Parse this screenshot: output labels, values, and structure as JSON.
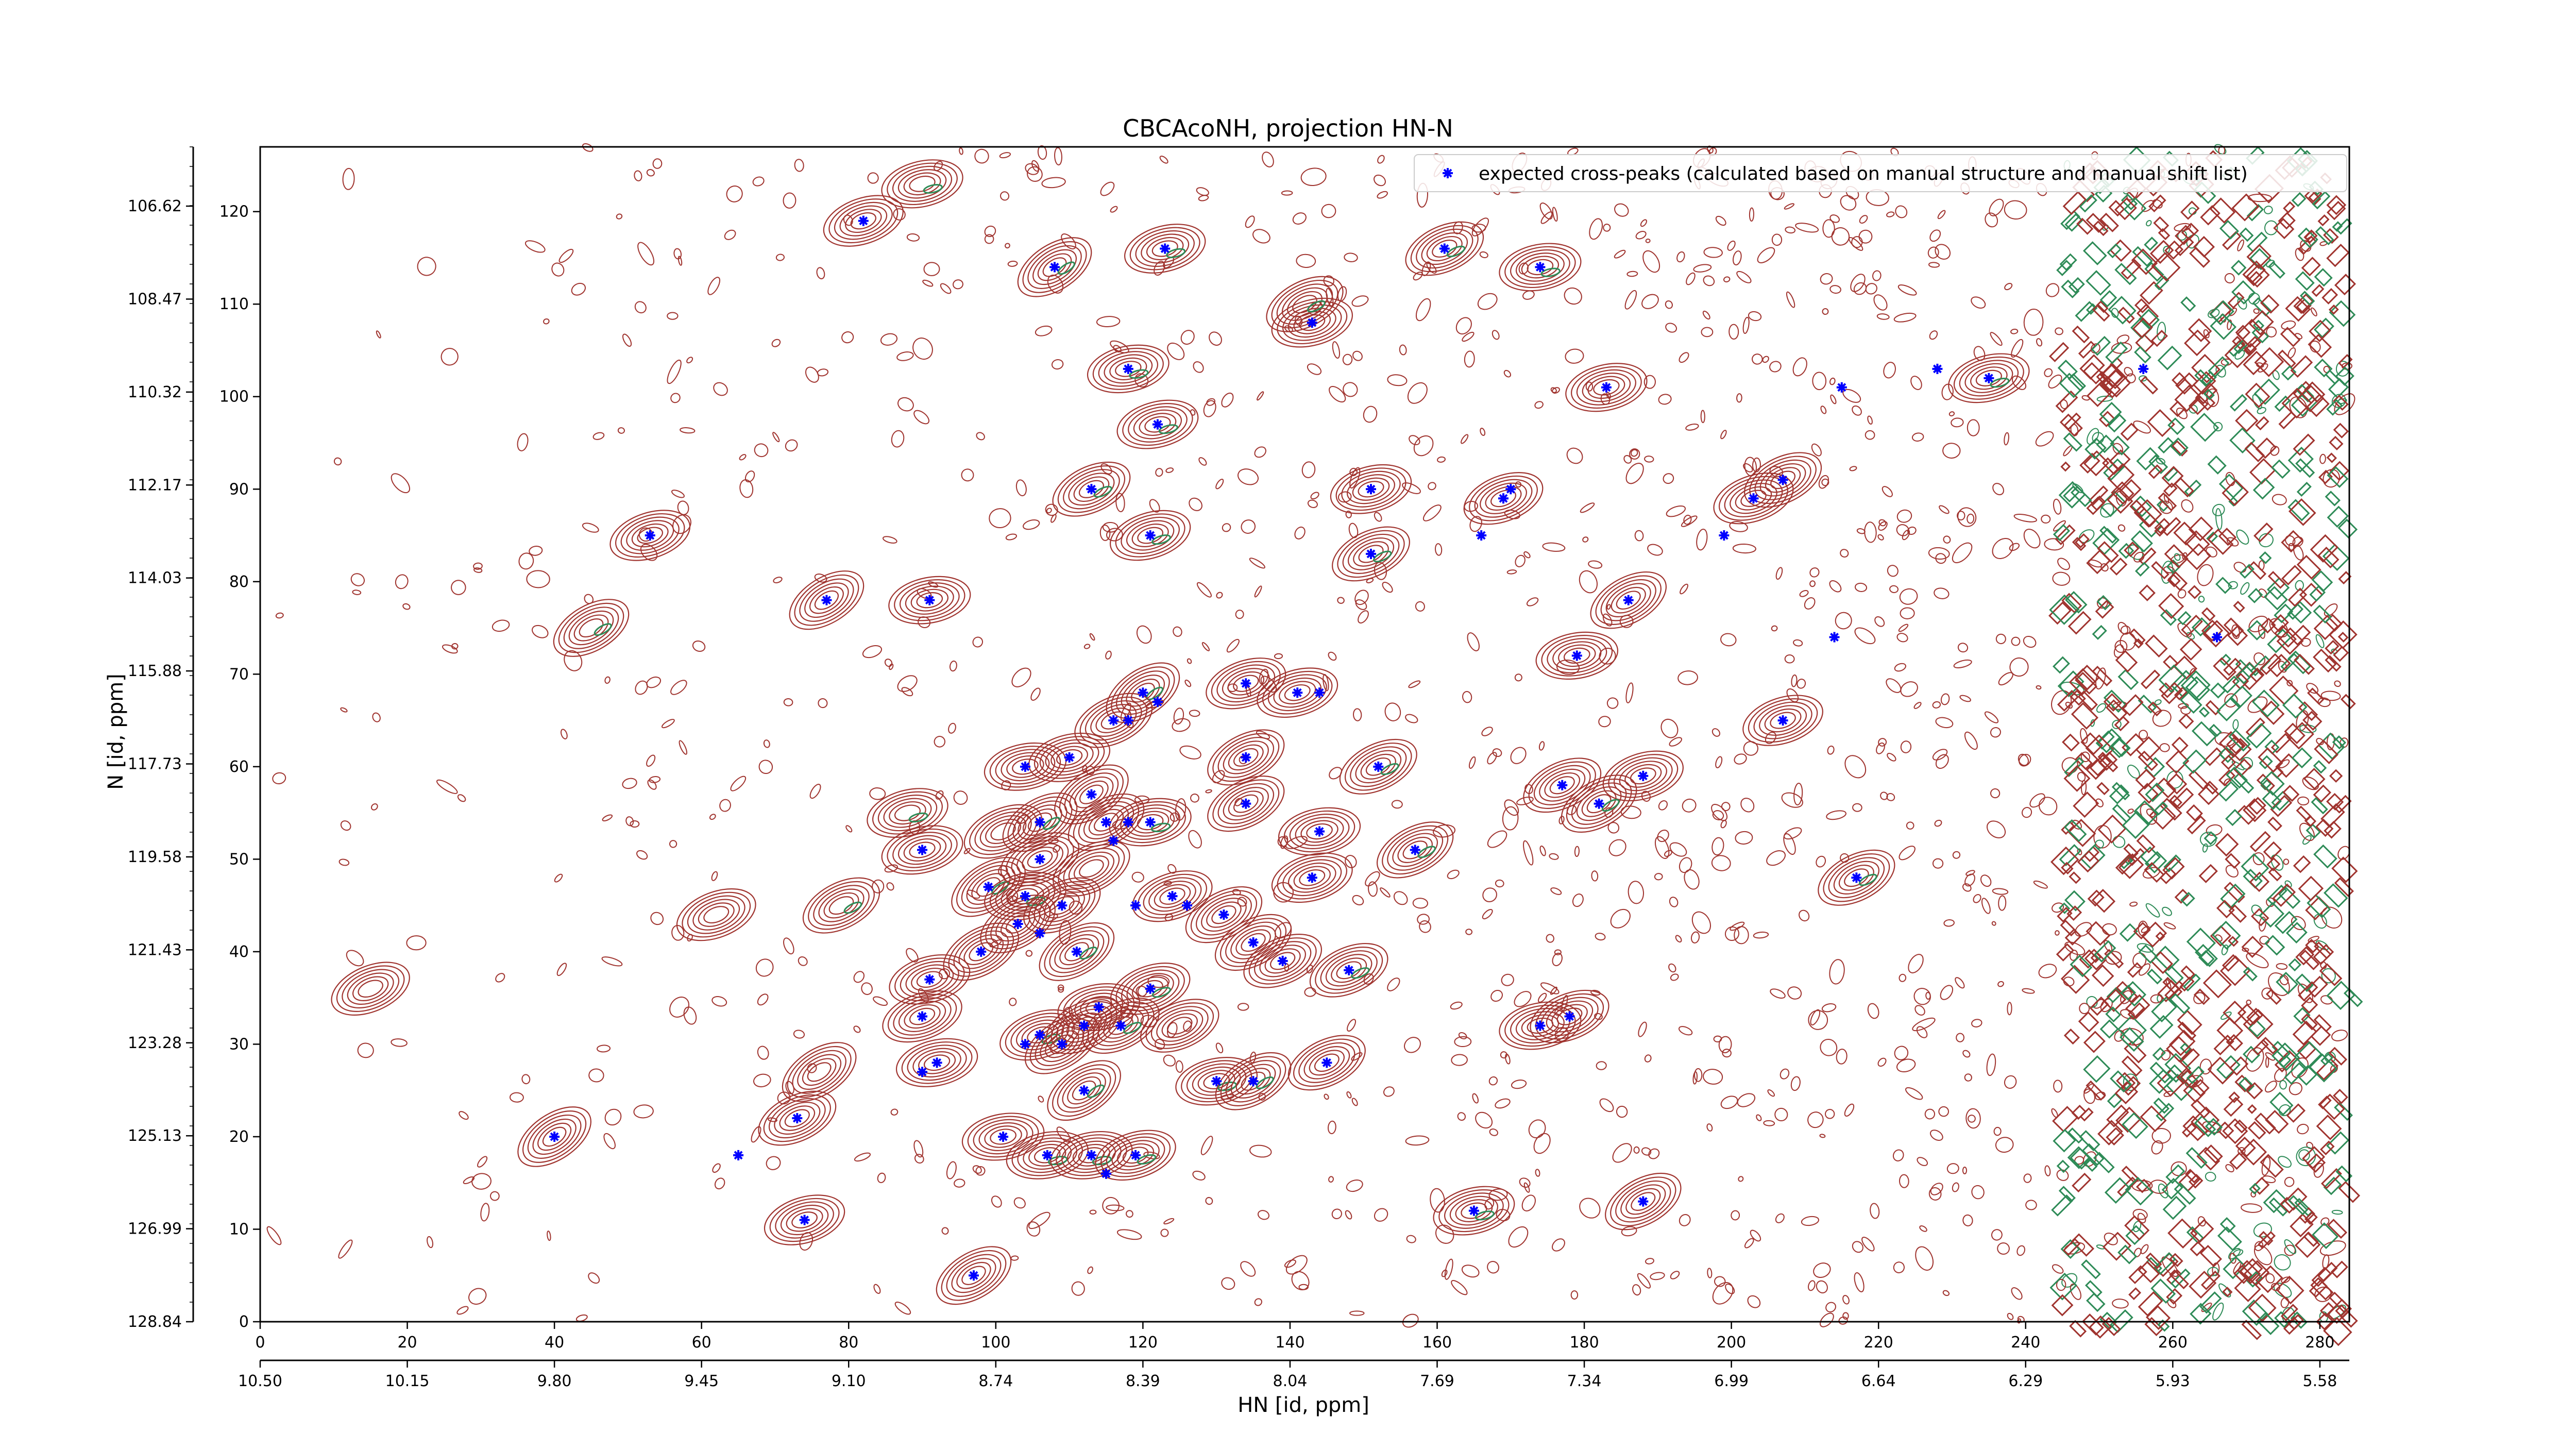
{
  "chart_data": {
    "type": "scatter",
    "title": "CBCAcoNH, projection HN-N",
    "xlabel": "HN [id, ppm]",
    "ylabel": "N [id, ppm]",
    "legend": {
      "placement": "top-right",
      "label": "expected cross-peaks (calculated based on manual structure and manual shift list)"
    },
    "colors": {
      "positive_contour": "#a0342f",
      "negative_contour": "#2e8b57",
      "marker": "#0000ff",
      "axis": "#000000"
    },
    "x_index_axis": {
      "range": [
        0,
        284
      ],
      "ticks": [
        0,
        20,
        40,
        60,
        80,
        100,
        120,
        140,
        160,
        180,
        200,
        220,
        240,
        260,
        280
      ],
      "tick_labels": [
        "0",
        "20",
        "40",
        "60",
        "80",
        "100",
        "120",
        "140",
        "160",
        "180",
        "200",
        "220",
        "240",
        "260",
        "280"
      ]
    },
    "x_ppm_axis": {
      "ticks": [
        10.5,
        10.15,
        9.8,
        9.45,
        9.1,
        8.74,
        8.39,
        8.04,
        7.69,
        7.34,
        6.99,
        6.64,
        6.29,
        5.93,
        5.58
      ],
      "tick_labels": [
        "10.50",
        "10.15",
        "9.80",
        "9.45",
        "9.10",
        "8.74",
        "8.39",
        "8.04",
        "7.69",
        "7.34",
        "6.99",
        "6.64",
        "6.29",
        "5.93",
        "5.58"
      ]
    },
    "y_index_axis": {
      "range": [
        0,
        127
      ],
      "ticks": [
        0,
        10,
        20,
        30,
        40,
        50,
        60,
        70,
        80,
        90,
        100,
        110,
        120
      ],
      "tick_labels": [
        "0",
        "10",
        "20",
        "30",
        "40",
        "50",
        "60",
        "70",
        "80",
        "90",
        "100",
        "110",
        "120"
      ]
    },
    "y_ppm_axis": {
      "ticks": [
        106.62,
        108.47,
        110.32,
        112.17,
        114.03,
        115.88,
        117.73,
        119.58,
        121.43,
        123.28,
        125.13,
        126.99,
        128.84
      ],
      "tick_labels": [
        "106.62",
        "108.47",
        "110.32",
        "112.17",
        "114.03",
        "115.88",
        "117.73",
        "119.58",
        "121.43",
        "123.28",
        "125.13",
        "126.99",
        "128.84"
      ]
    },
    "expected_peaks": [
      [
        82,
        119
      ],
      [
        108,
        114
      ],
      [
        123,
        116
      ],
      [
        161,
        116
      ],
      [
        174,
        114
      ],
      [
        143,
        108
      ],
      [
        118,
        103
      ],
      [
        122,
        97
      ],
      [
        183,
        101
      ],
      [
        215,
        101
      ],
      [
        228,
        103
      ],
      [
        235,
        102
      ],
      [
        256,
        103
      ],
      [
        113,
        90
      ],
      [
        151,
        90
      ],
      [
        169,
        89
      ],
      [
        170,
        90
      ],
      [
        166,
        85
      ],
      [
        121,
        85
      ],
      [
        203,
        89
      ],
      [
        207,
        91
      ],
      [
        199,
        85
      ],
      [
        53,
        85
      ],
      [
        151,
        83
      ],
      [
        77,
        78
      ],
      [
        91,
        78
      ],
      [
        186,
        78
      ],
      [
        266,
        74
      ],
      [
        214,
        74
      ],
      [
        179,
        72
      ],
      [
        134,
        69
      ],
      [
        141,
        68
      ],
      [
        144,
        68
      ],
      [
        120,
        68
      ],
      [
        122,
        67
      ],
      [
        118,
        65
      ],
      [
        116,
        65
      ],
      [
        207,
        65
      ],
      [
        104,
        60
      ],
      [
        110,
        61
      ],
      [
        134,
        61
      ],
      [
        152,
        60
      ],
      [
        177,
        58
      ],
      [
        188,
        59
      ],
      [
        182,
        56
      ],
      [
        113,
        57
      ],
      [
        134,
        56
      ],
      [
        106,
        54
      ],
      [
        115,
        54
      ],
      [
        118,
        54
      ],
      [
        121,
        54
      ],
      [
        116,
        52
      ],
      [
        144,
        53
      ],
      [
        143,
        48
      ],
      [
        157,
        51
      ],
      [
        90,
        51
      ],
      [
        106,
        50
      ],
      [
        99,
        47
      ],
      [
        104,
        46
      ],
      [
        109,
        45
      ],
      [
        124,
        46
      ],
      [
        126,
        45
      ],
      [
        131,
        44
      ],
      [
        135,
        41
      ],
      [
        139,
        39
      ],
      [
        119,
        45
      ],
      [
        217,
        48
      ],
      [
        103,
        43
      ],
      [
        106,
        42
      ],
      [
        98,
        40
      ],
      [
        111,
        40
      ],
      [
        148,
        38
      ],
      [
        121,
        36
      ],
      [
        91,
        37
      ],
      [
        90,
        33
      ],
      [
        114,
        34
      ],
      [
        106,
        31
      ],
      [
        112,
        32
      ],
      [
        117,
        32
      ],
      [
        104,
        30
      ],
      [
        109,
        30
      ],
      [
        174,
        32
      ],
      [
        178,
        33
      ],
      [
        92,
        28
      ],
      [
        90,
        27
      ],
      [
        145,
        28
      ],
      [
        130,
        26
      ],
      [
        135,
        26
      ],
      [
        112,
        25
      ],
      [
        73,
        22
      ],
      [
        40,
        20
      ],
      [
        101,
        20
      ],
      [
        107,
        18
      ],
      [
        113,
        18
      ],
      [
        115,
        16
      ],
      [
        119,
        18
      ],
      [
        65,
        18
      ],
      [
        165,
        12
      ],
      [
        188,
        13
      ],
      [
        74,
        11
      ],
      [
        97,
        5
      ]
    ],
    "contour_clusters": [
      [
        82,
        119
      ],
      [
        108,
        114
      ],
      [
        123,
        116
      ],
      [
        161,
        116
      ],
      [
        174,
        114
      ],
      [
        143,
        108
      ],
      [
        118,
        103
      ],
      [
        122,
        97
      ],
      [
        183,
        101
      ],
      [
        235,
        102
      ],
      [
        113,
        90
      ],
      [
        151,
        90
      ],
      [
        169,
        89
      ],
      [
        121,
        85
      ],
      [
        203,
        89
      ],
      [
        207,
        91
      ],
      [
        53,
        85
      ],
      [
        151,
        83
      ],
      [
        77,
        78
      ],
      [
        91,
        78
      ],
      [
        186,
        78
      ],
      [
        179,
        72
      ],
      [
        45,
        75
      ],
      [
        134,
        69
      ],
      [
        141,
        68
      ],
      [
        120,
        68
      ],
      [
        116,
        65
      ],
      [
        207,
        65
      ],
      [
        104,
        60
      ],
      [
        110,
        61
      ],
      [
        134,
        61
      ],
      [
        152,
        60
      ],
      [
        177,
        58
      ],
      [
        188,
        59
      ],
      [
        182,
        56
      ],
      [
        113,
        57
      ],
      [
        134,
        56
      ],
      [
        106,
        54
      ],
      [
        115,
        54
      ],
      [
        121,
        54
      ],
      [
        144,
        53
      ],
      [
        143,
        48
      ],
      [
        157,
        51
      ],
      [
        90,
        51
      ],
      [
        106,
        50
      ],
      [
        99,
        47
      ],
      [
        104,
        46
      ],
      [
        109,
        45
      ],
      [
        124,
        46
      ],
      [
        131,
        44
      ],
      [
        135,
        41
      ],
      [
        139,
        39
      ],
      [
        217,
        48
      ],
      [
        103,
        43
      ],
      [
        98,
        40
      ],
      [
        111,
        40
      ],
      [
        148,
        38
      ],
      [
        121,
        36
      ],
      [
        91,
        37
      ],
      [
        90,
        33
      ],
      [
        114,
        34
      ],
      [
        106,
        31
      ],
      [
        112,
        32
      ],
      [
        117,
        32
      ],
      [
        109,
        30
      ],
      [
        174,
        32
      ],
      [
        178,
        33
      ],
      [
        92,
        28
      ],
      [
        145,
        28
      ],
      [
        130,
        26
      ],
      [
        135,
        26
      ],
      [
        112,
        25
      ],
      [
        73,
        22
      ],
      [
        40,
        20
      ],
      [
        101,
        20
      ],
      [
        107,
        18
      ],
      [
        113,
        18
      ],
      [
        119,
        18
      ],
      [
        165,
        12
      ],
      [
        188,
        13
      ],
      [
        74,
        11
      ],
      [
        97,
        5
      ],
      [
        88,
        55
      ],
      [
        62,
        44
      ],
      [
        79,
        45
      ],
      [
        15,
        36
      ],
      [
        76,
        27
      ],
      [
        90,
        123
      ],
      [
        142,
        110
      ],
      [
        113,
        49
      ],
      [
        125,
        32
      ],
      [
        101,
        53
      ]
    ]
  }
}
